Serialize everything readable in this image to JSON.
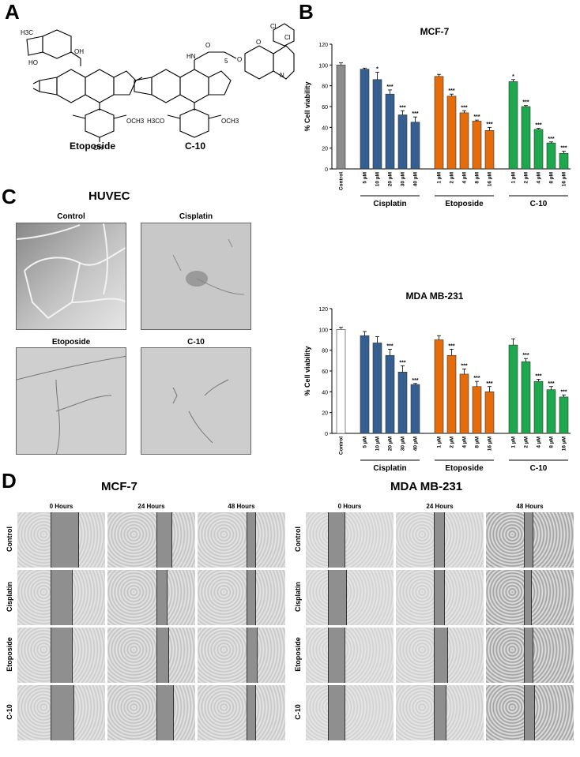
{
  "panels": {
    "a": "A",
    "b": "B",
    "c": "C",
    "d": "D"
  },
  "structures": {
    "etoposide_label": "Etoposide",
    "c10_label": "C-10",
    "etoposide_atoms": {
      "h3c": "H3C",
      "oh": "OH",
      "och3": "OCH3",
      "ho": "HO",
      "oh2": "OH"
    },
    "c10_atoms": {
      "hn": "HN",
      "o1": "O",
      "o2": "O",
      "n": "N",
      "cl1": "Cl",
      "cl2": "Cl",
      "sub": "5",
      "o3": "O",
      "h3co": "H3CO",
      "och3": "OCH3"
    }
  },
  "huvec": {
    "title": "HUVEC",
    "labels": [
      "Control",
      "Cisplatin",
      "Etoposide",
      "C-10"
    ]
  },
  "wound": {
    "mcf7_title": "MCF-7",
    "mda_title": "MDA MB-231",
    "columns": [
      "0 Hours",
      "24 Hours",
      "48 Hours"
    ],
    "rows": [
      "Control",
      "Cisplatin",
      "Etoposide",
      "C-10"
    ]
  },
  "chart_data": [
    {
      "type": "bar",
      "title": "MCF-7",
      "ylabel": "% Cell viability",
      "ylim": [
        0,
        120
      ],
      "yticks": [
        0,
        20,
        40,
        60,
        80,
        100,
        120
      ],
      "groups": [
        {
          "name": "",
          "color": "#8c8c8c",
          "categories": [
            "Control"
          ],
          "values": [
            100
          ],
          "errors": [
            2
          ],
          "sig": [
            ""
          ]
        },
        {
          "name": "Cisplatin",
          "color": "#355f91",
          "categories": [
            "5 µM",
            "10 µM",
            "20 µM",
            "30 µM",
            "40 µM"
          ],
          "values": [
            96,
            86,
            72,
            52,
            45
          ],
          "errors": [
            1,
            7,
            4,
            4,
            5
          ],
          "sig": [
            "",
            "*",
            "***",
            "***",
            "***"
          ]
        },
        {
          "name": "Etoposide",
          "color": "#e46c0a",
          "categories": [
            "1 µM",
            "2 µM",
            "4 µM",
            "8 µM",
            "16 µM"
          ],
          "values": [
            89,
            70,
            54,
            46,
            37
          ],
          "errors": [
            2,
            2,
            2,
            1,
            3
          ],
          "sig": [
            "",
            "***",
            "***",
            "***",
            "***"
          ]
        },
        {
          "name": "C-10",
          "color": "#1ea84e",
          "categories": [
            "1 µM",
            "2 µM",
            "4 µM",
            "8 µM",
            "16 µM"
          ],
          "values": [
            84,
            60,
            38,
            25,
            15
          ],
          "errors": [
            2,
            1,
            1,
            1,
            2
          ],
          "sig": [
            "*",
            "***",
            "***",
            "***",
            "***"
          ]
        }
      ]
    },
    {
      "type": "bar",
      "title": "MDA MB-231",
      "ylabel": "% Cell viability",
      "ylim": [
        0,
        120
      ],
      "yticks": [
        0,
        20,
        40,
        60,
        80,
        100,
        120
      ],
      "groups": [
        {
          "name": "",
          "color": "#ffffff",
          "categories": [
            "Control"
          ],
          "values": [
            100
          ],
          "errors": [
            2
          ],
          "sig": [
            ""
          ]
        },
        {
          "name": "Cisplatin",
          "color": "#355f91",
          "categories": [
            "5 µM",
            "10 µM",
            "20 µM",
            "30 µM",
            "40 µM"
          ],
          "values": [
            94,
            87,
            75,
            59,
            47
          ],
          "errors": [
            4,
            6,
            6,
            6,
            1
          ],
          "sig": [
            "",
            "",
            "***",
            "***",
            "***"
          ]
        },
        {
          "name": "Etoposide",
          "color": "#e46c0a",
          "categories": [
            "1 µM",
            "2 µM",
            "4 µM",
            "8 µM",
            "16 µM"
          ],
          "values": [
            90,
            75,
            57,
            45,
            40
          ],
          "errors": [
            4,
            6,
            5,
            5,
            5
          ],
          "sig": [
            "",
            "***",
            "***",
            "***",
            "***"
          ]
        },
        {
          "name": "C-10",
          "color": "#1ea84e",
          "categories": [
            "1 µM",
            "2 µM",
            "4 µM",
            "8 µM",
            "16 µM"
          ],
          "values": [
            85,
            69,
            50,
            42,
            35
          ],
          "errors": [
            6,
            3,
            2,
            3,
            2
          ],
          "sig": [
            "",
            "***",
            "***",
            "***",
            "***"
          ]
        }
      ]
    }
  ]
}
